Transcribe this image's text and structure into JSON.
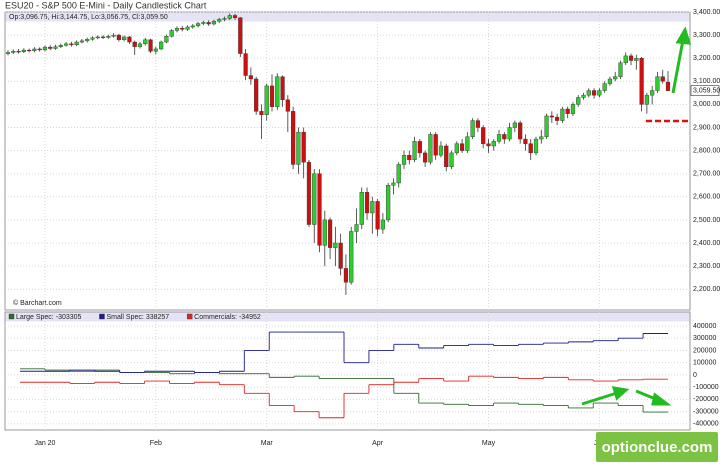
{
  "chart_data": [
    {
      "type": "candlestick",
      "title": "ESU20 - S&P 500 E-Mini - Daily Candlestick Chart",
      "info": "Op:3,096.75, Hi:3,144.75, Lo:3,056.75, Cl:3,059.50",
      "credit": "© Barchart.com",
      "watermark": "optionclue.com",
      "last_value_label": "3,059.50",
      "up_color": "#2ecc2e",
      "down_color": "#cc1010",
      "categories": [
        null,
        null,
        null,
        null,
        null,
        null,
        null,
        "Jan 20",
        null,
        null,
        null,
        null,
        null,
        null,
        null,
        null,
        null,
        null,
        null,
        null,
        null,
        null,
        null,
        null,
        null,
        null,
        null,
        null,
        "Feb",
        null,
        null,
        null,
        null,
        null,
        null,
        null,
        null,
        null,
        null,
        null,
        null,
        null,
        null,
        null,
        null,
        null,
        null,
        null,
        null,
        "Mar",
        null,
        null,
        null,
        null,
        null,
        null,
        null,
        null,
        null,
        null,
        null,
        null,
        null,
        null,
        null,
        null,
        null,
        null,
        null,
        null,
        "Apr",
        null,
        null,
        null,
        null,
        null,
        null,
        null,
        null,
        null,
        null,
        null,
        null,
        null,
        null,
        null,
        null,
        null,
        null,
        null,
        null,
        "May",
        null,
        null,
        null,
        null,
        null,
        null,
        null,
        null,
        null,
        null,
        null,
        null,
        null,
        null,
        null,
        null,
        null,
        null,
        null,
        null,
        "Jun",
        null,
        null,
        null,
        null,
        null,
        null,
        null,
        null,
        null,
        null,
        null,
        null,
        null
      ],
      "open": [
        3220,
        3225,
        3230,
        3228,
        3235,
        3232,
        3240,
        3236,
        3248,
        3242,
        3250,
        3256,
        3262,
        3258,
        3270,
        3275,
        3282,
        3288,
        3292,
        3290,
        3295,
        3300,
        3280,
        3292,
        3270,
        3250,
        3262,
        3280,
        3230,
        3240,
        3270,
        3295,
        3320,
        3330,
        3325,
        3335,
        3340,
        3350,
        3355,
        3348,
        3360,
        3368,
        3372,
        3385,
        3375,
        3220,
        3125,
        3110,
        2970,
        2955,
        3080,
        2990,
        3120,
        3020,
        2970,
        2740,
        2880,
        2750,
        2480,
        2700,
        2390,
        2500,
        2380,
        2400,
        2290,
        2230,
        2450,
        2480,
        2620,
        2530,
        2580,
        2460,
        2500,
        2650,
        2660,
        2740,
        2780,
        2760,
        2840,
        2790,
        2750,
        2870,
        2780,
        2820,
        2730,
        2790,
        2830,
        2800,
        2860,
        2930,
        2900,
        2830,
        2820,
        2840,
        2870,
        2850,
        2900,
        2920,
        2850,
        2830,
        2790,
        2850,
        2860,
        2950,
        2945,
        2930,
        2980,
        2960,
        3000,
        3030,
        3040,
        3060,
        3040,
        3060,
        3090,
        3110,
        3120,
        3180,
        3210,
        3190,
        3200,
        3000,
        3040,
        3060,
        3120,
        3096.75
      ],
      "high": [
        3235,
        3238,
        3240,
        3243,
        3242,
        3248,
        3247,
        3255,
        3256,
        3258,
        3263,
        3270,
        3271,
        3277,
        3283,
        3289,
        3295,
        3299,
        3300,
        3302,
        3308,
        3306,
        3298,
        3296,
        3276,
        3270,
        3288,
        3284,
        3250,
        3276,
        3302,
        3326,
        3338,
        3340,
        3342,
        3348,
        3357,
        3362,
        3364,
        3367,
        3375,
        3380,
        3394,
        3392,
        3378,
        3240,
        3160,
        3120,
        3000,
        3090,
        3130,
        3135,
        3125,
        3040,
        2990,
        2900,
        2900,
        2760,
        2720,
        2720,
        2540,
        2510,
        2470,
        2440,
        2350,
        2470,
        2550,
        2640,
        2640,
        2600,
        2590,
        2530,
        2660,
        2680,
        2750,
        2800,
        2800,
        2860,
        2850,
        2800,
        2880,
        2880,
        2840,
        2830,
        2800,
        2840,
        2850,
        2880,
        2940,
        2940,
        2910,
        2850,
        2850,
        2890,
        2880,
        2920,
        2930,
        2930,
        2870,
        2850,
        2860,
        2890,
        2960,
        2970,
        2960,
        2990,
        2990,
        3010,
        3040,
        3050,
        3070,
        3070,
        3070,
        3100,
        3120,
        3140,
        3190,
        3225,
        3220,
        3215,
        3205,
        3050,
        3080,
        3140,
        3150,
        3144.75
      ],
      "low": [
        3212,
        3218,
        3220,
        3222,
        3225,
        3226,
        3228,
        3230,
        3235,
        3236,
        3244,
        3250,
        3250,
        3252,
        3264,
        3268,
        3276,
        3282,
        3283,
        3284,
        3289,
        3272,
        3273,
        3262,
        3214,
        3242,
        3255,
        3222,
        3218,
        3235,
        3265,
        3290,
        3312,
        3316,
        3318,
        3328,
        3333,
        3343,
        3340,
        3342,
        3352,
        3360,
        3365,
        3366,
        3205,
        3105,
        3085,
        2955,
        2850,
        2930,
        2970,
        2975,
        2990,
        2880,
        2720,
        2700,
        2680,
        2470,
        2400,
        2360,
        2300,
        2330,
        2300,
        2260,
        2175,
        2220,
        2400,
        2460,
        2500,
        2440,
        2430,
        2440,
        2490,
        2610,
        2640,
        2720,
        2740,
        2750,
        2770,
        2730,
        2740,
        2760,
        2770,
        2710,
        2720,
        2780,
        2790,
        2790,
        2850,
        2880,
        2810,
        2790,
        2800,
        2830,
        2830,
        2840,
        2880,
        2830,
        2800,
        2760,
        2780,
        2830,
        2850,
        2920,
        2910,
        2920,
        2940,
        2950,
        2990,
        3020,
        3030,
        3025,
        3030,
        3050,
        3080,
        3100,
        3110,
        3170,
        3170,
        3150,
        2970,
        2960,
        3000,
        3050,
        3090,
        3056.75
      ],
      "close": [
        3225,
        3230,
        3228,
        3235,
        3232,
        3240,
        3236,
        3248,
        3242,
        3250,
        3256,
        3262,
        3258,
        3270,
        3275,
        3282,
        3288,
        3292,
        3290,
        3295,
        3300,
        3280,
        3292,
        3270,
        3250,
        3262,
        3280,
        3230,
        3240,
        3270,
        3295,
        3320,
        3330,
        3325,
        3335,
        3340,
        3350,
        3355,
        3348,
        3360,
        3368,
        3372,
        3385,
        3375,
        3220,
        3125,
        3110,
        2970,
        2955,
        3080,
        2990,
        3120,
        3020,
        2970,
        2740,
        2880,
        2750,
        2480,
        2700,
        2390,
        2500,
        2380,
        2400,
        2290,
        2230,
        2450,
        2480,
        2620,
        2530,
        2580,
        2460,
        2500,
        2650,
        2660,
        2740,
        2780,
        2760,
        2840,
        2790,
        2750,
        2870,
        2780,
        2820,
        2730,
        2790,
        2830,
        2800,
        2860,
        2930,
        2900,
        2830,
        2820,
        2840,
        2870,
        2850,
        2900,
        2920,
        2850,
        2830,
        2790,
        2850,
        2860,
        2950,
        2945,
        2930,
        2980,
        2960,
        3000,
        3030,
        3040,
        3060,
        3040,
        3060,
        3090,
        3110,
        3120,
        3180,
        3210,
        3190,
        3200,
        3000,
        3040,
        3060,
        3120,
        3100,
        3059.5
      ],
      "ylim": [
        2110,
        3400
      ],
      "yticks": [
        {
          "value": 2200,
          "label": "2,200.00"
        },
        {
          "value": 2300,
          "label": "2,300.00"
        },
        {
          "value": 2400,
          "label": "2,400.00"
        },
        {
          "value": 2500,
          "label": "2,500.00"
        },
        {
          "value": 2600,
          "label": "2,600.00"
        },
        {
          "value": 2700,
          "label": "2,700.00"
        },
        {
          "value": 2800,
          "label": "2,800.00"
        },
        {
          "value": 2900,
          "label": "2,900.00"
        },
        {
          "value": 3000,
          "label": "3,000.00"
        },
        {
          "value": 3100,
          "label": "3,100.00"
        },
        {
          "value": 3200,
          "label": "3,200.00"
        },
        {
          "value": 3300,
          "label": "3,300.00"
        },
        {
          "value": 3400,
          "label": "3,400.00"
        }
      ],
      "grid": true
    },
    {
      "type": "step",
      "categories": [
        null,
        null,
        null,
        null,
        null,
        null,
        null,
        null,
        null,
        null,
        null,
        null,
        null,
        null,
        null,
        null,
        null,
        null,
        null,
        null,
        null,
        null,
        null,
        null,
        null,
        null
      ],
      "series": [
        {
          "name": "Large Spec:",
          "color": "#2f6b2f",
          "values": [
            50000,
            40000,
            30000,
            40000,
            20000,
            20000,
            10000,
            20000,
            10000,
            10000,
            -20000,
            -10000,
            -30000,
            -30000,
            -30000,
            -150000,
            -230000,
            -240000,
            -250000,
            -230000,
            -240000,
            -250000,
            -270000,
            -230000,
            -250000,
            -303305
          ]
        },
        {
          "name": "Small Spec:",
          "color": "#1c1c8c",
          "values": [
            30000,
            30000,
            40000,
            30000,
            20000,
            30000,
            30000,
            20000,
            30000,
            200000,
            350000,
            350000,
            350000,
            100000,
            200000,
            250000,
            220000,
            240000,
            250000,
            240000,
            250000,
            260000,
            270000,
            280000,
            300000,
            338257
          ]
        },
        {
          "name": "Commercials:",
          "color": "#e02424",
          "values": [
            -60000,
            -60000,
            -70000,
            -60000,
            -70000,
            -50000,
            -70000,
            -60000,
            -80000,
            -150000,
            -250000,
            -300000,
            -350000,
            -150000,
            -80000,
            -60000,
            -30000,
            -50000,
            -10000,
            -20000,
            -30000,
            -20000,
            -40000,
            -50000,
            -40000,
            -34952
          ]
        }
      ],
      "ylim": [
        -450000,
        514000
      ],
      "yticks": [
        -400000,
        -300000,
        -200000,
        -100000,
        0,
        100000,
        200000,
        300000,
        400000
      ],
      "grid": true
    }
  ]
}
